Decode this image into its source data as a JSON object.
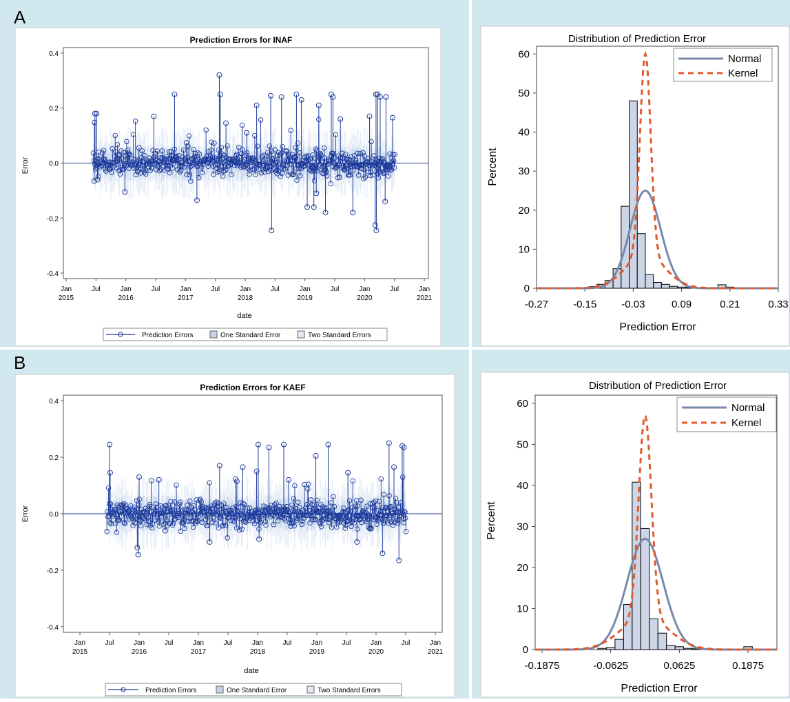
{
  "figure": {
    "panel_labels": [
      "A",
      "B"
    ],
    "colors": {
      "background": "#d2e8ef",
      "series": "#1c3a9b",
      "band": "#b9cdea",
      "normal": "#7788aa",
      "kernel": "#e2592c",
      "bar_fill": "#ccd6e6"
    }
  },
  "chart_data": [
    {
      "type": "scatter",
      "title": "Prediction Errors for INAF",
      "xlabel": "date",
      "ylabel": "Error",
      "ylim": [
        -0.42,
        0.42
      ],
      "yticks": [
        "0.4",
        "0.2",
        "0.0",
        "-0.2",
        "-0.4"
      ],
      "xticks": [
        {
          "line1": "Jan",
          "line2": "2015"
        },
        {
          "line1": "Jul",
          "line2": ""
        },
        {
          "line1": "Jan",
          "line2": "2016"
        },
        {
          "line1": "Jul",
          "line2": ""
        },
        {
          "line1": "Jan",
          "line2": "2017"
        },
        {
          "line1": "Jul",
          "line2": ""
        },
        {
          "line1": "Jan",
          "line2": "2018"
        },
        {
          "line1": "Jul",
          "line2": ""
        },
        {
          "line1": "Jan",
          "line2": "2019"
        },
        {
          "line1": "Jul",
          "line2": ""
        },
        {
          "line1": "Jan",
          "line2": "2020"
        },
        {
          "line1": "Jul",
          "line2": ""
        },
        {
          "line1": "Jan",
          "line2": "2021"
        }
      ],
      "legend": [
        "Prediction Errors",
        "One Standard Error",
        "Two Standard Errors"
      ],
      "date_range": [
        "2015-06",
        "2020-07"
      ],
      "series": [
        {
          "name": "Prediction Errors",
          "points": [
            [
              "2015-06-25",
              0.18
            ],
            [
              "2015-07-05",
              0.18
            ],
            [
              "2015-06-20",
              -0.065
            ],
            [
              "2015-07-10",
              -0.06
            ],
            [
              "2015-12-25",
              -0.105
            ],
            [
              "2016-06-20",
              0.17
            ],
            [
              "2016-10-25",
              0.25
            ],
            [
              "2017-03-10",
              -0.135
            ],
            [
              "2017-07-25",
              0.32
            ],
            [
              "2017-08-01",
              0.25
            ],
            [
              "2018-03-10",
              0.21
            ],
            [
              "2018-06-05",
              0.245
            ],
            [
              "2018-06-10",
              -0.245
            ],
            [
              "2018-08-10",
              0.24
            ],
            [
              "2018-11-10",
              0.25
            ],
            [
              "2018-12-10",
              0.23
            ],
            [
              "2019-01-15",
              -0.16
            ],
            [
              "2019-02-25",
              -0.16
            ],
            [
              "2019-03-10",
              -0.11
            ],
            [
              "2019-03-25",
              0.21
            ],
            [
              "2019-05-05",
              -0.18
            ],
            [
              "2019-06-10",
              0.25
            ],
            [
              "2019-06-20",
              0.24
            ],
            [
              "2019-08-05",
              0.16
            ],
            [
              "2019-10-20",
              -0.18
            ],
            [
              "2020-02-01",
              0.17
            ],
            [
              "2020-03-10",
              0.25
            ],
            [
              "2020-03-20",
              0.25
            ],
            [
              "2020-04-05",
              0.24
            ],
            [
              "2020-05-10",
              0.24
            ],
            [
              "2020-03-05",
              -0.225
            ],
            [
              "2020-03-12",
              -0.245
            ],
            [
              "2020-05-05",
              -0.14
            ],
            [
              "2020-06-20",
              0.165
            ],
            [
              "2017-09-05",
              0.145
            ],
            [
              "2018-01-10",
              0.11
            ],
            [
              "2016-03-20",
              0.055
            ]
          ]
        }
      ]
    },
    {
      "type": "bar",
      "title": "Distribution of Prediction Error",
      "xlabel": "Prediction Error",
      "ylabel": "Percent",
      "xticks": [
        "-0.27",
        "-0.15",
        "-0.03",
        "0.09",
        "0.21",
        "0.33"
      ],
      "yticks": [
        "0",
        "10",
        "20",
        "30",
        "40",
        "50",
        "60"
      ],
      "xlim": [
        -0.27,
        0.33
      ],
      "ylim": [
        0,
        62
      ],
      "bin_width": 0.02,
      "bins": [
        -0.13,
        -0.11,
        -0.09,
        -0.07,
        -0.05,
        -0.03,
        -0.01,
        0.01,
        0.03,
        0.05,
        0.07,
        0.09,
        0.11,
        0.13,
        0.15,
        0.17,
        0.19,
        0.21,
        0.23
      ],
      "values": [
        0.4,
        1,
        2,
        5,
        21,
        48,
        14,
        3.5,
        1.5,
        1,
        0.5,
        0.3,
        0.2,
        0.1,
        0.1,
        0.1,
        0.9,
        0.3,
        0
      ],
      "legend": [
        "Normal",
        "Kernel"
      ],
      "legend_position": "top-right",
      "normal": {
        "mean": 0.0,
        "sd": 0.038,
        "peak": 25
      },
      "kernel": {
        "peak": 60
      }
    },
    {
      "type": "scatter",
      "title": "Prediction Errors for KAEF",
      "xlabel": "date",
      "ylabel": "Error",
      "ylim": [
        -0.42,
        0.42
      ],
      "yticks": [
        "0.4",
        "0.2",
        "0.0",
        "-0.2",
        "-0.4"
      ],
      "xticks": [
        {
          "line1": "Jan",
          "line2": "2015"
        },
        {
          "line1": "Jul",
          "line2": ""
        },
        {
          "line1": "Jan",
          "line2": "2016"
        },
        {
          "line1": "Jul",
          "line2": ""
        },
        {
          "line1": "Jan",
          "line2": "2017"
        },
        {
          "line1": "Jul",
          "line2": ""
        },
        {
          "line1": "Jan",
          "line2": "2018"
        },
        {
          "line1": "Jul",
          "line2": ""
        },
        {
          "line1": "Jan",
          "line2": "2019"
        },
        {
          "line1": "Jul",
          "line2": ""
        },
        {
          "line1": "Jan",
          "line2": "2020"
        },
        {
          "line1": "Jul",
          "line2": ""
        },
        {
          "line1": "Jan",
          "line2": "2021"
        }
      ],
      "legend": [
        "Prediction Errors",
        "One Standard Error",
        "Two Standard Errors"
      ],
      "date_range": [
        "2015-06",
        "2020-07"
      ],
      "series": [
        {
          "name": "Prediction Errors",
          "points": [
            [
              "2015-07-01",
              0.245
            ],
            [
              "2015-07-05",
              0.145
            ],
            [
              "2015-12-25",
              -0.145
            ],
            [
              "2015-12-20",
              -0.12
            ],
            [
              "2016-01-01",
              0.13
            ],
            [
              "2016-05-01",
              0.12
            ],
            [
              "2017-05-10",
              0.17
            ],
            [
              "2017-08-25",
              0.115
            ],
            [
              "2017-10-01",
              0.165
            ],
            [
              "2017-12-25",
              0.15
            ],
            [
              "2018-01-05",
              0.245
            ],
            [
              "2018-03-10",
              0.235
            ],
            [
              "2018-06-10",
              0.245
            ],
            [
              "2018-07-10",
              0.12
            ],
            [
              "2018-12-25",
              0.205
            ],
            [
              "2019-03-10",
              0.245
            ],
            [
              "2019-07-10",
              0.145
            ],
            [
              "2019-09-05",
              -0.1
            ],
            [
              "2020-03-20",
              0.25
            ],
            [
              "2020-04-20",
              0.165
            ],
            [
              "2020-06-10",
              0.24
            ],
            [
              "2020-06-20",
              0.235
            ],
            [
              "2020-02-10",
              -0.14
            ],
            [
              "2020-05-20",
              -0.165
            ],
            [
              "2018-01-10",
              -0.09
            ],
            [
              "2016-06-10",
              -0.06
            ],
            [
              "2017-03-10",
              -0.1
            ]
          ]
        }
      ]
    },
    {
      "type": "bar",
      "title": "Distribution of Prediction Error",
      "xlabel": "Prediction Error",
      "ylabel": "Percent",
      "xticks": [
        "-0.1875",
        "-0.0625",
        "0.0625",
        "0.1875"
      ],
      "yticks": [
        "0",
        "10",
        "20",
        "30",
        "40",
        "50",
        "60"
      ],
      "xlim": [
        -0.2,
        0.24
      ],
      "ylim": [
        0,
        62
      ],
      "bin_width": 0.015625,
      "bins": [
        -0.078125,
        -0.0625,
        -0.046875,
        -0.03125,
        -0.015625,
        0.0,
        0.015625,
        0.03125,
        0.046875,
        0.0625,
        0.078125,
        0.09375,
        0.109375,
        0.125,
        0.140625,
        0.15625,
        0.171875,
        0.1875,
        0.203125
      ],
      "values": [
        0.3,
        0.5,
        2.5,
        11,
        40.8,
        29.5,
        7.5,
        4,
        1,
        0.7,
        0.3,
        0.2,
        0.2,
        0.1,
        0.1,
        0.1,
        0.1,
        0.7,
        0
      ],
      "legend": [
        "Normal",
        "Kernel"
      ],
      "legend_position": "top-right",
      "normal": {
        "mean": 0.0,
        "sd": 0.033,
        "peak": 27
      },
      "kernel": {
        "peak": 57
      }
    }
  ]
}
